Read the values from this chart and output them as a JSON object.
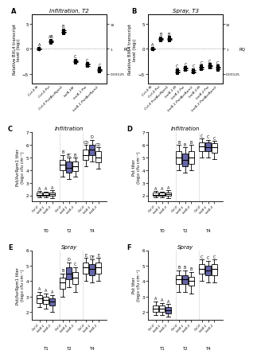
{
  "panel_A": {
    "title": "Infiltration, T2",
    "ylabel_left": "Relative BXL4 transcript\nlevel (log₂)",
    "ylabel_right": "RQ",
    "ylim": [
      -7,
      7
    ],
    "yticks": [
      -5,
      0,
      5
    ],
    "right_ytick_labels": [
      "0.03125",
      "1",
      "32"
    ],
    "right_ytick_pos": [
      -5,
      0,
      5
    ],
    "xticklabels": [
      "Col-0 M",
      "Col-0 Pst",
      "Col-0 Pst/AvrRpm1",
      "bxl4-1M",
      "bxl4-1 Pst",
      "bxl4-1 Pst/AvrRpm1"
    ],
    "groups": [
      {
        "x": 0,
        "mean": 0.0,
        "points": [
          -0.15,
          0.05,
          0.1
        ],
        "label": "A"
      },
      {
        "x": 1,
        "mean": 1.5,
        "points": [
          1.2,
          1.5,
          1.7
        ],
        "label": "AB"
      },
      {
        "x": 2,
        "mean": 3.5,
        "points": [
          3.1,
          3.5,
          3.8,
          3.6
        ],
        "label": "B"
      },
      {
        "x": 3,
        "mean": -2.5,
        "points": [
          -2.8,
          -2.5,
          -2.3,
          -2.6
        ],
        "label": "C"
      },
      {
        "x": 4,
        "mean": -3.2,
        "points": [
          -3.5,
          -3.2,
          -3.0,
          -3.3
        ],
        "label": "C"
      },
      {
        "x": 5,
        "mean": -4.2,
        "points": [
          -4.5,
          -4.2,
          -4.0,
          -4.3
        ],
        "label": "C"
      }
    ]
  },
  "panel_B": {
    "title": "Spray, T3",
    "ylabel_left": "Relative BXL4 transcript\nlevel (log₂)",
    "ylabel_right": "RQ",
    "ylim": [
      -7,
      7
    ],
    "yticks": [
      -5,
      0,
      5
    ],
    "right_ytick_labels": [
      "0.03125",
      "1",
      "32"
    ],
    "right_ytick_pos": [
      -5,
      0,
      5
    ],
    "xticklabels": [
      "Col-0 M",
      "Col-0 Pst",
      "Col-0 Pst/AvrRpm1",
      "bxl4-1 M",
      "bxl4-1 Pst",
      "bxl4-1 Pst/AvrRpm1",
      "bxl4-3 M",
      "bxl4-3 Pst",
      "bxl4-3 Pst/AvrRpm1"
    ],
    "groups": [
      {
        "x": 0,
        "mean": 0.0,
        "points": [
          -0.1,
          0.05,
          0.1
        ],
        "label": "A"
      },
      {
        "x": 1,
        "mean": 2.0,
        "points": [
          1.7,
          2.0,
          2.2,
          2.1
        ],
        "label": "B"
      },
      {
        "x": 2,
        "mean": 2.0,
        "points": [
          1.7,
          2.0,
          2.3,
          2.0
        ],
        "label": "B"
      },
      {
        "x": 3,
        "mean": -4.5,
        "points": [
          -4.9,
          -4.5,
          -4.2,
          -4.6
        ],
        "label": "C"
      },
      {
        "x": 4,
        "mean": -4.0,
        "points": [
          -4.3,
          -4.0,
          -3.8,
          -4.1
        ],
        "label": "C"
      },
      {
        "x": 5,
        "mean": -4.5,
        "points": [
          -4.8,
          -4.5,
          -4.2
        ],
        "label": "C"
      },
      {
        "x": 6,
        "mean": -3.8,
        "points": [
          -4.1,
          -3.8,
          -3.5,
          -3.9
        ],
        "label": "C"
      },
      {
        "x": 7,
        "mean": -3.5,
        "points": [
          -3.8,
          -3.5,
          -3.2
        ],
        "label": "C"
      },
      {
        "x": 8,
        "mean": -3.8,
        "points": [
          -4.2,
          -3.8,
          -3.5,
          -3.9
        ],
        "label": "C"
      }
    ]
  },
  "panel_C": {
    "title": "Infiltration",
    "ylabel": "Pst/AvrRpm1 titer\n(log₁₀ cfu cm⁻²)",
    "ylim": [
      1.5,
      7
    ],
    "yticks": [
      2,
      3,
      4,
      5,
      6,
      7
    ],
    "groups": [
      {
        "label": "T0",
        "boxes": [
          {
            "name": "Col-0",
            "q1": 1.95,
            "median": 2.05,
            "q3": 2.2,
            "whislo": 1.85,
            "whishi": 2.35,
            "filled": false,
            "sig": "A"
          },
          {
            "name": "bxl4-1",
            "q1": 1.95,
            "median": 2.05,
            "q3": 2.2,
            "whislo": 1.85,
            "whishi": 2.3,
            "filled": false,
            "sig": "A"
          },
          {
            "name": "bxl4-3",
            "q1": 1.95,
            "median": 2.1,
            "q3": 2.25,
            "whislo": 1.8,
            "whishi": 2.4,
            "filled": false,
            "sig": "A"
          }
        ]
      },
      {
        "label": "T2",
        "boxes": [
          {
            "name": "Col-0",
            "q1": 4.0,
            "median": 4.4,
            "q3": 4.8,
            "whislo": 3.5,
            "whishi": 5.2,
            "filled": false,
            "sig": "B"
          },
          {
            "name": "bxl4-1",
            "q1": 3.8,
            "median": 4.2,
            "q3": 4.7,
            "whislo": 3.3,
            "whishi": 5.0,
            "filled": true,
            "sig": "BC"
          },
          {
            "name": "bxl4-3",
            "q1": 3.9,
            "median": 4.3,
            "q3": 4.7,
            "whislo": 3.5,
            "whishi": 5.0,
            "filled": false,
            "sig": "B"
          }
        ]
      },
      {
        "label": "T4",
        "boxes": [
          {
            "name": "Col-0",
            "q1": 4.8,
            "median": 5.2,
            "q3": 5.6,
            "whislo": 4.3,
            "whishi": 6.0,
            "filled": false,
            "sig": "CD"
          },
          {
            "name": "bxl4-1",
            "q1": 5.2,
            "median": 5.6,
            "q3": 6.0,
            "whislo": 4.7,
            "whishi": 6.4,
            "filled": true,
            "sig": "D"
          },
          {
            "name": "bxl4-3",
            "q1": 4.6,
            "median": 5.0,
            "q3": 5.5,
            "whislo": 4.1,
            "whishi": 5.8,
            "filled": false,
            "sig": "CD"
          }
        ]
      }
    ]
  },
  "panel_D": {
    "title": "Infiltration",
    "ylabel": "Pst titer\n(log₁₀ cfu cm⁻²)",
    "ylim": [
      1.5,
      7
    ],
    "yticks": [
      2,
      3,
      4,
      5,
      6,
      7
    ],
    "groups": [
      {
        "label": "T0",
        "boxes": [
          {
            "name": "Col-0",
            "q1": 1.95,
            "median": 2.05,
            "q3": 2.2,
            "whislo": 1.85,
            "whishi": 2.35,
            "filled": false,
            "sig": "A"
          },
          {
            "name": "bxl4-1",
            "q1": 1.95,
            "median": 2.05,
            "q3": 2.2,
            "whislo": 1.85,
            "whishi": 2.3,
            "filled": false,
            "sig": "A"
          },
          {
            "name": "bxl4-3",
            "q1": 1.95,
            "median": 2.1,
            "q3": 2.25,
            "whislo": 1.8,
            "whishi": 2.4,
            "filled": false,
            "sig": "A"
          }
        ]
      },
      {
        "label": "T2",
        "boxes": [
          {
            "name": "Col-0",
            "q1": 4.5,
            "median": 5.0,
            "q3": 5.5,
            "whislo": 4.0,
            "whishi": 6.0,
            "filled": false,
            "sig": "B"
          },
          {
            "name": "bxl4-1",
            "q1": 4.3,
            "median": 4.8,
            "q3": 5.3,
            "whislo": 3.8,
            "whishi": 5.8,
            "filled": true,
            "sig": "B"
          },
          {
            "name": "bxl4-3",
            "q1": 4.5,
            "median": 5.0,
            "q3": 5.5,
            "whislo": 4.0,
            "whishi": 6.0,
            "filled": false,
            "sig": "B"
          }
        ]
      },
      {
        "label": "T4",
        "boxes": [
          {
            "name": "Col-0",
            "q1": 5.5,
            "median": 5.9,
            "q3": 6.2,
            "whislo": 5.0,
            "whishi": 6.5,
            "filled": false,
            "sig": "C"
          },
          {
            "name": "bxl4-1",
            "q1": 5.5,
            "median": 5.8,
            "q3": 6.2,
            "whislo": 5.0,
            "whishi": 6.4,
            "filled": true,
            "sig": "C"
          },
          {
            "name": "bxl4-3",
            "q1": 5.4,
            "median": 5.8,
            "q3": 6.1,
            "whislo": 4.9,
            "whishi": 6.3,
            "filled": false,
            "sig": "C"
          }
        ]
      }
    ]
  },
  "panel_E": {
    "title": "Spray",
    "ylabel": "Pst/AvrRpm1 titer\n(log₁₀ cfu cm⁻²)",
    "ylim": [
      1.5,
      6
    ],
    "yticks": [
      2,
      3,
      4,
      5,
      6
    ],
    "groups": [
      {
        "label": "T1",
        "boxes": [
          {
            "name": "Col-0",
            "q1": 2.6,
            "median": 2.9,
            "q3": 3.1,
            "whislo": 2.3,
            "whishi": 3.3,
            "filled": false,
            "sig": "A"
          },
          {
            "name": "bxl4-1",
            "q1": 2.5,
            "median": 2.8,
            "q3": 3.0,
            "whislo": 2.2,
            "whishi": 3.2,
            "filled": false,
            "sig": "A"
          },
          {
            "name": "bxl4-3",
            "q1": 2.4,
            "median": 2.7,
            "q3": 2.9,
            "whislo": 2.0,
            "whishi": 3.1,
            "filled": true,
            "sig": "A"
          }
        ]
      },
      {
        "label": "T2",
        "boxes": [
          {
            "name": "Col-0",
            "q1": 3.5,
            "median": 3.9,
            "q3": 4.2,
            "whislo": 3.0,
            "whishi": 4.5,
            "filled": false,
            "sig": "B"
          },
          {
            "name": "bxl4-1",
            "q1": 4.1,
            "median": 4.5,
            "q3": 4.9,
            "whislo": 3.6,
            "whishi": 5.2,
            "filled": true,
            "sig": "D"
          },
          {
            "name": "bxl4-3",
            "q1": 3.8,
            "median": 4.2,
            "q3": 4.6,
            "whislo": 3.3,
            "whishi": 4.9,
            "filled": false,
            "sig": "C"
          }
        ]
      },
      {
        "label": "T4",
        "boxes": [
          {
            "name": "Col-0",
            "q1": 4.5,
            "median": 4.9,
            "q3": 5.2,
            "whislo": 4.0,
            "whishi": 5.5,
            "filled": false,
            "sig": "E"
          },
          {
            "name": "bxl4-1",
            "q1": 4.4,
            "median": 4.8,
            "q3": 5.1,
            "whislo": 3.9,
            "whishi": 5.4,
            "filled": true,
            "sig": "DE"
          },
          {
            "name": "bxl4-3",
            "q1": 4.5,
            "median": 4.9,
            "q3": 5.2,
            "whislo": 4.0,
            "whishi": 5.5,
            "filled": false,
            "sig": "E"
          }
        ]
      }
    ]
  },
  "panel_F": {
    "title": "Spray",
    "ylabel": "Pst titer\n(log₁₀ cfu cm⁻²)",
    "ylim": [
      1.5,
      6
    ],
    "yticks": [
      2,
      3,
      4,
      5,
      6
    ],
    "groups": [
      {
        "label": "T1",
        "boxes": [
          {
            "name": "Col-0",
            "q1": 2.0,
            "median": 2.2,
            "q3": 2.4,
            "whislo": 1.8,
            "whishi": 2.7,
            "filled": false,
            "sig": "A"
          },
          {
            "name": "bxl4-1",
            "q1": 2.0,
            "median": 2.2,
            "q3": 2.4,
            "whislo": 1.8,
            "whishi": 2.6,
            "filled": false,
            "sig": "A"
          },
          {
            "name": "bxl4-3",
            "q1": 1.9,
            "median": 2.1,
            "q3": 2.3,
            "whislo": 1.7,
            "whishi": 2.5,
            "filled": true,
            "sig": "A"
          }
        ]
      },
      {
        "label": "T2",
        "boxes": [
          {
            "name": "Col-0",
            "q1": 3.8,
            "median": 4.1,
            "q3": 4.4,
            "whislo": 3.3,
            "whishi": 4.7,
            "filled": false,
            "sig": "B"
          },
          {
            "name": "bxl4-1",
            "q1": 3.8,
            "median": 4.1,
            "q3": 4.4,
            "whislo": 3.3,
            "whishi": 4.7,
            "filled": true,
            "sig": "B"
          },
          {
            "name": "bxl4-3",
            "q1": 3.7,
            "median": 4.0,
            "q3": 4.3,
            "whislo": 3.2,
            "whishi": 4.6,
            "filled": false,
            "sig": "B"
          }
        ]
      },
      {
        "label": "T4",
        "boxes": [
          {
            "name": "Col-0",
            "q1": 4.5,
            "median": 4.8,
            "q3": 5.1,
            "whislo": 4.0,
            "whishi": 5.4,
            "filled": false,
            "sig": "C"
          },
          {
            "name": "bxl4-1",
            "q1": 4.4,
            "median": 4.7,
            "q3": 5.0,
            "whislo": 3.9,
            "whishi": 5.3,
            "filled": true,
            "sig": "C"
          },
          {
            "name": "bxl4-3",
            "q1": 4.4,
            "median": 4.8,
            "q3": 5.1,
            "whislo": 3.9,
            "whishi": 5.4,
            "filled": false,
            "sig": "C"
          }
        ]
      }
    ]
  },
  "fill_color": "#6666aa",
  "bg_color": "#ffffff"
}
